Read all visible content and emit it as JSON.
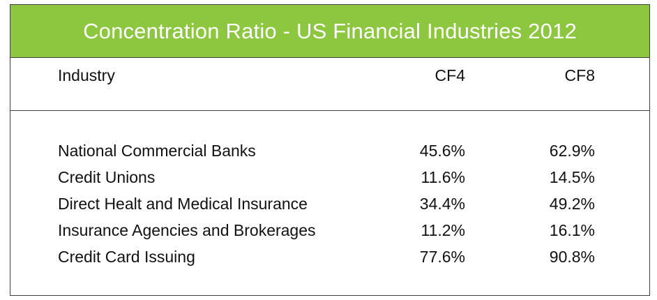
{
  "chart_data": {
    "type": "table",
    "title": "Concentration Ratio - US Financial Industries 2012",
    "columns": [
      "Industry",
      "CF4",
      "CF8"
    ],
    "rows": [
      {
        "industry": "National Commercial Banks",
        "cf4": "45.6%",
        "cf8": "62.9%"
      },
      {
        "industry": "Credit Unions",
        "cf4": "11.6%",
        "cf8": "14.5%"
      },
      {
        "industry": "Direct Healt and Medical Insurance",
        "cf4": "34.4%",
        "cf8": "49.2%"
      },
      {
        "industry": "Insurance Agencies and Brokerages",
        "cf4": "11.2%",
        "cf8": "16.1%"
      },
      {
        "industry": "Credit Card Issuing",
        "cf4": "77.6%",
        "cf8": "90.8%"
      }
    ]
  },
  "colors": {
    "title_bar": "#8dc63f",
    "title_text": "#ffffff",
    "border": "#3f3f3f"
  }
}
